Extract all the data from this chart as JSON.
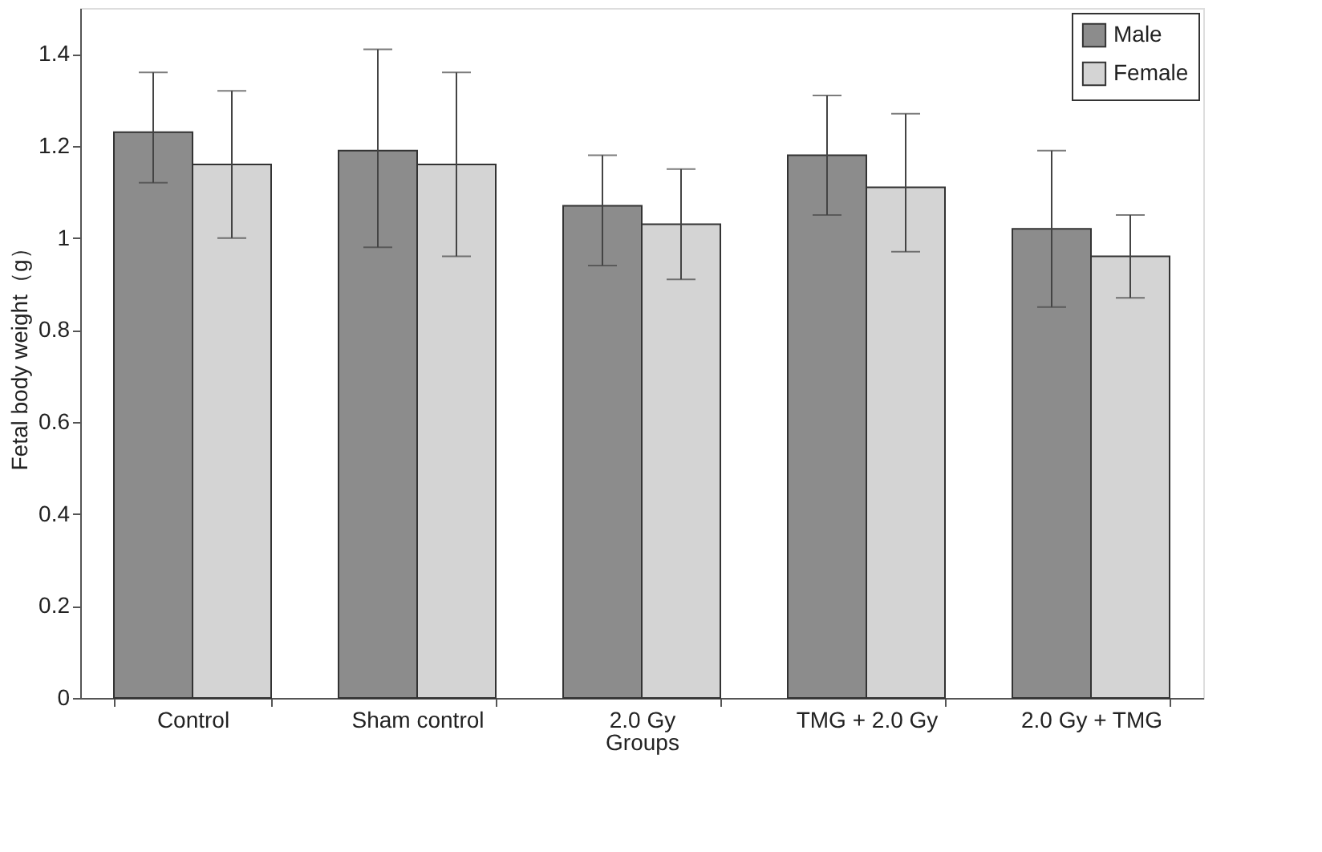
{
  "chart_data": {
    "type": "bar",
    "xlabel": "Groups",
    "ylabel": "Fetal body weight（g）",
    "categories": [
      "Control",
      "Sham control",
      "2.0 Gy",
      "TMG + 2.0 Gy",
      "2.0 Gy + TMG"
    ],
    "series": [
      {
        "name": "Male",
        "color": "#8c8c8c",
        "values": [
          1.23,
          1.19,
          1.07,
          1.18,
          1.02
        ],
        "errors": [
          [
            1.12,
            1.36
          ],
          [
            0.98,
            1.41
          ],
          [
            0.94,
            1.18
          ],
          [
            1.05,
            1.31
          ],
          [
            0.85,
            1.19
          ]
        ]
      },
      {
        "name": "Female",
        "color": "#d4d4d4",
        "values": [
          1.16,
          1.16,
          1.03,
          1.11,
          0.96
        ],
        "errors": [
          [
            1.0,
            1.32
          ],
          [
            0.96,
            1.36
          ],
          [
            0.91,
            1.15
          ],
          [
            0.97,
            1.27
          ],
          [
            0.87,
            1.05
          ]
        ]
      }
    ],
    "ylim": [
      0,
      1.5
    ],
    "yticks": [
      0,
      0.2,
      0.4,
      0.6,
      0.8,
      1,
      1.2,
      1.4
    ],
    "grid": false,
    "legend": "top right"
  }
}
